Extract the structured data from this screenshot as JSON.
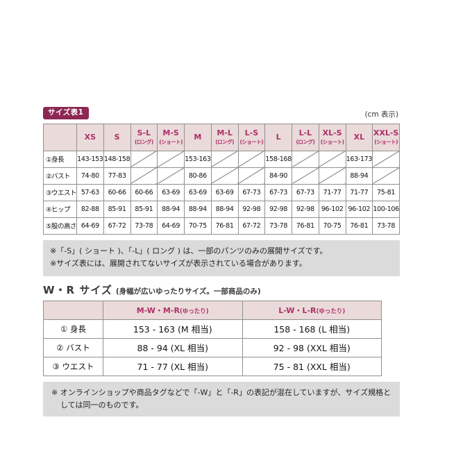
{
  "colors": {
    "badge_bg": "#8c2853",
    "header_bg": "#ebdada",
    "header_text": "#ac3168",
    "note_bg": "#dbdbdb",
    "border": "#909090"
  },
  "table1": {
    "badge": "サイズ表1",
    "unit_label": "(cm 表示)",
    "columns": [
      {
        "label": "XS",
        "sub": ""
      },
      {
        "label": "S",
        "sub": ""
      },
      {
        "label": "S-L",
        "sub": "(ロング)"
      },
      {
        "label": "M-S",
        "sub": "(ショート)"
      },
      {
        "label": "M",
        "sub": ""
      },
      {
        "label": "M-L",
        "sub": "(ロング)"
      },
      {
        "label": "L-S",
        "sub": "(ショート)"
      },
      {
        "label": "L",
        "sub": ""
      },
      {
        "label": "L-L",
        "sub": "(ロング)"
      },
      {
        "label": "XL-S",
        "sub": "(ショート)"
      },
      {
        "label": "XL",
        "sub": ""
      },
      {
        "label": "XXL-S",
        "sub": "(ショート)"
      }
    ],
    "rows": [
      {
        "label": "①身長",
        "values": [
          "143-153",
          "148-158",
          "",
          "",
          "153-163",
          "",
          "",
          "158-168",
          "",
          "",
          "163-173",
          ""
        ]
      },
      {
        "label": "②バスト",
        "values": [
          "74-80",
          "77-83",
          "",
          "",
          "80-86",
          "",
          "",
          "84-90",
          "",
          "",
          "88-94",
          ""
        ]
      },
      {
        "label": "③ウエスト",
        "values": [
          "57-63",
          "60-66",
          "60-66",
          "63-69",
          "63-69",
          "63-69",
          "67-73",
          "67-73",
          "67-73",
          "71-77",
          "71-77",
          "75-81"
        ]
      },
      {
        "label": "④ヒップ",
        "values": [
          "82-88",
          "85-91",
          "85-91",
          "88-94",
          "88-94",
          "88-94",
          "92-98",
          "92-98",
          "92-98",
          "96-102",
          "96-102",
          "100-106"
        ]
      },
      {
        "label": "⑤股の高さ",
        "values": [
          "64-69",
          "67-72",
          "73-78",
          "64-69",
          "70-75",
          "76-81",
          "67-72",
          "73-78",
          "76-81",
          "70-75",
          "76-81",
          "73-78"
        ]
      }
    ]
  },
  "notes_table1": [
    "※「-S」( ショート )、「-L」( ロング ) は、一部のパンツのみの展開サイズです。",
    "※サイズ表には、展開されてないサイズが表示されている場合があります。"
  ],
  "wr_section": {
    "title": "W・R サイズ",
    "subtitle": "(身幅が広いゆったりサイズ。一部商品のみ)",
    "columns": [
      {
        "label": "M-W・M-R",
        "sub": "(ゆったり)"
      },
      {
        "label": "L-W・L-R",
        "sub": "(ゆったり)"
      }
    ],
    "rows": [
      {
        "label": "① 身長",
        "values": [
          "153 - 163 (M 相当)",
          "158 - 168 (L 相当)"
        ]
      },
      {
        "label": "② バスト",
        "values": [
          "88 - 94 (XL 相当)",
          "92 - 98 (XXL 相当)"
        ]
      },
      {
        "label": "③ ウエスト",
        "values": [
          "71 - 77 (XL 相当)",
          "75 - 81 (XXL 相当)"
        ]
      }
    ]
  },
  "note_wr": "※ オンラインショップや商品タグなどで「-W」と「-R」の表記が混在していますが、サイズ規格としては同一のものです。"
}
